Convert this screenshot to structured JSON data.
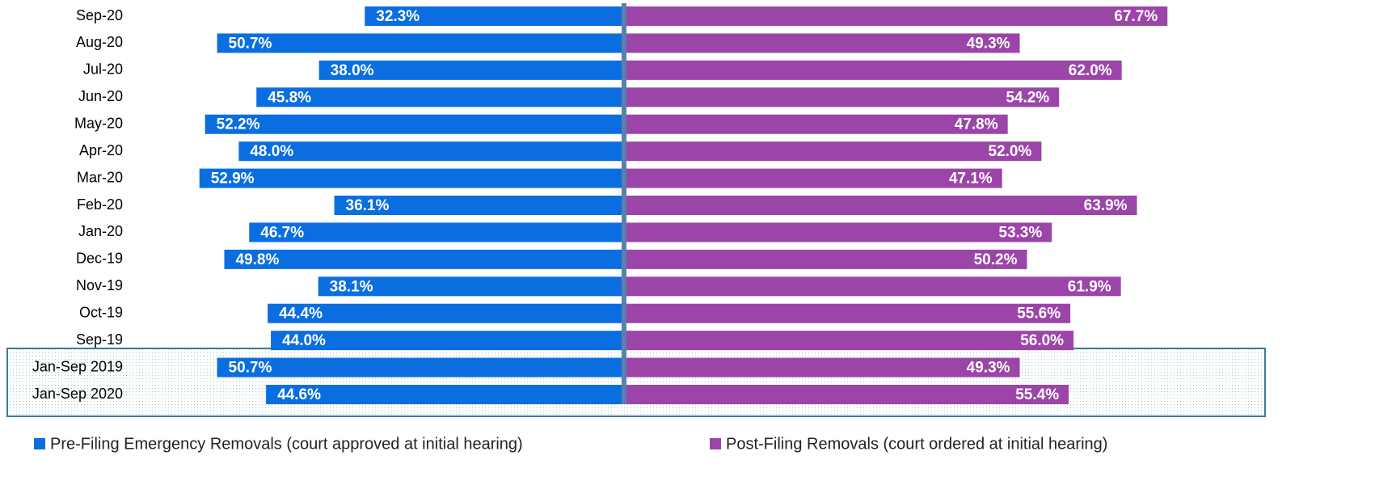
{
  "chart_data": {
    "type": "diverging-bar",
    "categories": [
      "Sep-20",
      "Aug-20",
      "Jul-20",
      "Jun-20",
      "May-20",
      "Apr-20",
      "Mar-20",
      "Feb-20",
      "Jan-20",
      "Dec-19",
      "Nov-19",
      "Oct-19",
      "Sep-19",
      "Jan-Sep 2019",
      "Jan-Sep 2020"
    ],
    "series": [
      {
        "name": "Pre-Filing Emergency Removals (court approved at initial hearing)",
        "color": "#0b6ee0",
        "values": [
          32.3,
          50.7,
          38.0,
          45.8,
          52.2,
          48.0,
          52.9,
          36.1,
          46.7,
          49.8,
          38.1,
          44.4,
          44.0,
          50.7,
          44.6
        ],
        "value_labels": [
          "32.3%",
          "50.7%",
          "38.0%",
          "45.8%",
          "52.2%",
          "48.0%",
          "52.9%",
          "36.1%",
          "46.7%",
          "49.8%",
          "38.1%",
          "44.4%",
          "44.0%",
          "50.7%",
          "44.6%"
        ]
      },
      {
        "name": "Post-Filing Removals (court ordered at initial hearing)",
        "color": "#9b45a9",
        "values": [
          67.7,
          49.3,
          62.0,
          54.2,
          47.8,
          52.0,
          47.1,
          63.9,
          53.3,
          50.2,
          61.9,
          55.6,
          56.0,
          49.3,
          55.4
        ],
        "value_labels": [
          "67.7%",
          "49.3%",
          "62.0%",
          "54.2%",
          "47.8%",
          "52.0%",
          "47.1%",
          "63.9%",
          "53.3%",
          "50.2%",
          "61.9%",
          "55.6%",
          "56.0%",
          "49.3%",
          "55.4%"
        ]
      }
    ]
  }
}
